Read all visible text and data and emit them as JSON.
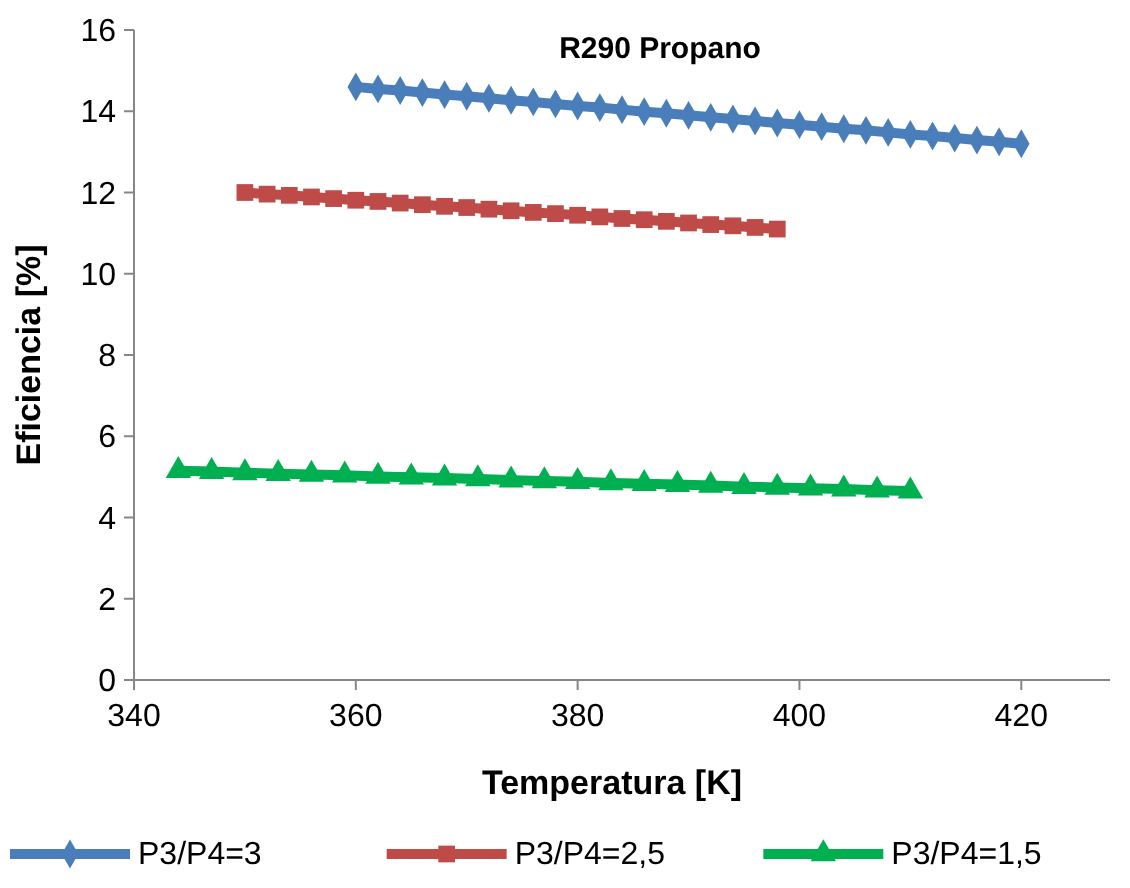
{
  "chart_data": {
    "type": "line",
    "title": "R290 Propano",
    "xlabel": "Temperatura [K]",
    "ylabel": "Eficiencia [%]",
    "xlim": [
      340,
      428
    ],
    "xticks": [
      340,
      360,
      380,
      400,
      420
    ],
    "ylim": [
      0,
      16
    ],
    "yticks": [
      0,
      2,
      4,
      6,
      8,
      10,
      12,
      14,
      16
    ],
    "grid": false,
    "legend": "bottom",
    "series": [
      {
        "name": "P3/P4=3",
        "color": "#4a7ebb",
        "marker": "diamond",
        "x": [
          360,
          362,
          364,
          366,
          368,
          370,
          372,
          374,
          376,
          378,
          380,
          382,
          384,
          386,
          388,
          390,
          392,
          394,
          396,
          398,
          400,
          402,
          404,
          406,
          408,
          410,
          412,
          414,
          416,
          418,
          420
        ],
        "values": [
          14.6,
          14.55,
          14.51,
          14.46,
          14.41,
          14.37,
          14.32,
          14.27,
          14.23,
          14.18,
          14.13,
          14.09,
          14.04,
          13.99,
          13.95,
          13.9,
          13.85,
          13.81,
          13.76,
          13.71,
          13.67,
          13.62,
          13.57,
          13.53,
          13.48,
          13.43,
          13.39,
          13.34,
          13.29,
          13.25,
          13.2
        ]
      },
      {
        "name": "P3/P4=2,5",
        "color": "#be4b48",
        "marker": "square",
        "x": [
          350,
          352,
          354,
          356,
          358,
          360,
          362,
          364,
          366,
          368,
          370,
          372,
          374,
          376,
          378,
          380,
          382,
          384,
          386,
          388,
          390,
          392,
          394,
          396,
          398
        ],
        "values": [
          12.0,
          11.96,
          11.93,
          11.89,
          11.85,
          11.81,
          11.78,
          11.74,
          11.7,
          11.66,
          11.63,
          11.59,
          11.55,
          11.51,
          11.48,
          11.44,
          11.4,
          11.36,
          11.33,
          11.29,
          11.25,
          11.21,
          11.18,
          11.14,
          11.1
        ]
      },
      {
        "name": "P3/P4=1,5",
        "color": "#00b050",
        "marker": "triangle",
        "x": [
          344,
          347,
          350,
          353,
          356,
          359,
          362,
          365,
          368,
          371,
          374,
          377,
          380,
          383,
          386,
          389,
          392,
          395,
          398,
          401,
          404,
          407,
          410
        ],
        "values": [
          5.15,
          5.13,
          5.1,
          5.08,
          5.06,
          5.04,
          5.01,
          4.99,
          4.97,
          4.95,
          4.92,
          4.9,
          4.88,
          4.85,
          4.83,
          4.81,
          4.79,
          4.76,
          4.74,
          4.72,
          4.7,
          4.67,
          4.65
        ]
      }
    ]
  }
}
